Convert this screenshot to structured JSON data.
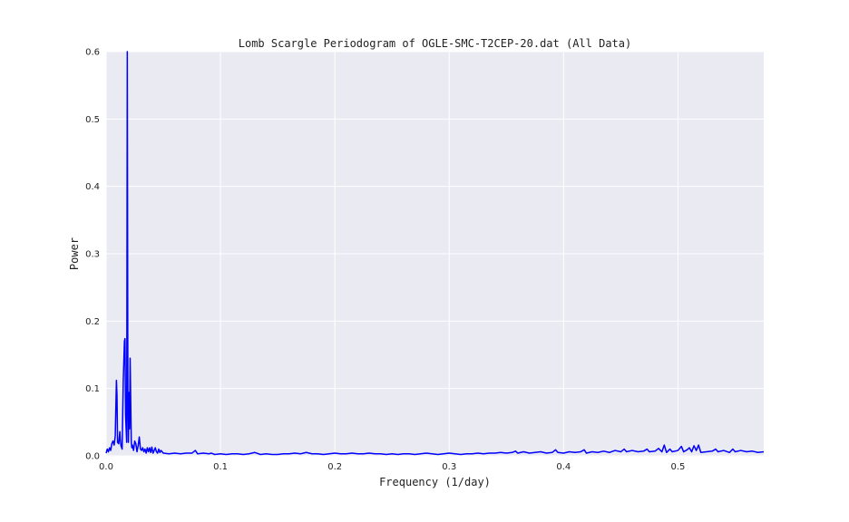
{
  "chart_data": {
    "type": "line",
    "title": "Lomb Scargle Periodogram of OGLE-SMC-T2CEP-20.dat (All Data)",
    "xlabel": "Frequency (1/day)",
    "ylabel": "Power",
    "xlim": [
      0.0,
      0.575
    ],
    "ylim": [
      0.0,
      0.6
    ],
    "xticks": [
      "0.0",
      "0.1",
      "0.2",
      "0.3",
      "0.4",
      "0.5"
    ],
    "yticks": [
      "0.0",
      "0.1",
      "0.2",
      "0.3",
      "0.4",
      "0.5",
      "0.6"
    ],
    "grid": true,
    "background": "#eaeaf2",
    "line_color": "#0000ff",
    "series": [
      {
        "x": [
          0.0,
          0.001,
          0.002,
          0.003,
          0.004,
          0.005,
          0.006,
          0.007,
          0.008,
          0.009,
          0.0095,
          0.01,
          0.011,
          0.012,
          0.0125,
          0.013,
          0.014,
          0.015,
          0.016,
          0.0165,
          0.017,
          0.018,
          0.0185,
          0.019,
          0.0195,
          0.02,
          0.0205,
          0.021,
          0.022,
          0.0225,
          0.023,
          0.024,
          0.025,
          0.026,
          0.027,
          0.028,
          0.029,
          0.03,
          0.031,
          0.032,
          0.033,
          0.034,
          0.035,
          0.036,
          0.037,
          0.038,
          0.039,
          0.04,
          0.041,
          0.042,
          0.043,
          0.044,
          0.045,
          0.046,
          0.047,
          0.048,
          0.05,
          0.055,
          0.06,
          0.065,
          0.07,
          0.075,
          0.078,
          0.08,
          0.085,
          0.09,
          0.092,
          0.095,
          0.1,
          0.105,
          0.11,
          0.115,
          0.12,
          0.125,
          0.13,
          0.135,
          0.14,
          0.145,
          0.15,
          0.155,
          0.16,
          0.165,
          0.17,
          0.175,
          0.18,
          0.185,
          0.19,
          0.195,
          0.2,
          0.205,
          0.21,
          0.215,
          0.22,
          0.225,
          0.23,
          0.235,
          0.24,
          0.245,
          0.25,
          0.255,
          0.26,
          0.265,
          0.27,
          0.275,
          0.28,
          0.285,
          0.29,
          0.295,
          0.3,
          0.305,
          0.31,
          0.315,
          0.32,
          0.325,
          0.33,
          0.335,
          0.34,
          0.345,
          0.35,
          0.355,
          0.358,
          0.36,
          0.365,
          0.37,
          0.375,
          0.38,
          0.385,
          0.39,
          0.393,
          0.395,
          0.4,
          0.405,
          0.41,
          0.415,
          0.418,
          0.42,
          0.425,
          0.43,
          0.435,
          0.44,
          0.445,
          0.45,
          0.453,
          0.455,
          0.46,
          0.465,
          0.47,
          0.473,
          0.475,
          0.48,
          0.483,
          0.486,
          0.488,
          0.49,
          0.493,
          0.495,
          0.5,
          0.503,
          0.505,
          0.508,
          0.51,
          0.512,
          0.514,
          0.516,
          0.518,
          0.52,
          0.525,
          0.53,
          0.533,
          0.535,
          0.54,
          0.545,
          0.548,
          0.55,
          0.555,
          0.56,
          0.565,
          0.57,
          0.575
        ],
        "y": [
          0.004,
          0.01,
          0.006,
          0.012,
          0.008,
          0.018,
          0.022,
          0.016,
          0.03,
          0.112,
          0.09,
          0.02,
          0.018,
          0.036,
          0.022,
          0.015,
          0.01,
          0.112,
          0.17,
          0.174,
          0.06,
          0.02,
          0.6,
          0.1,
          0.02,
          0.094,
          0.04,
          0.145,
          0.02,
          0.012,
          0.016,
          0.008,
          0.022,
          0.018,
          0.006,
          0.015,
          0.028,
          0.01,
          0.008,
          0.012,
          0.006,
          0.01,
          0.004,
          0.012,
          0.006,
          0.012,
          0.005,
          0.013,
          0.004,
          0.008,
          0.012,
          0.006,
          0.004,
          0.01,
          0.005,
          0.008,
          0.004,
          0.003,
          0.004,
          0.003,
          0.004,
          0.004,
          0.008,
          0.003,
          0.004,
          0.003,
          0.004,
          0.002,
          0.003,
          0.002,
          0.003,
          0.003,
          0.002,
          0.003,
          0.005,
          0.002,
          0.003,
          0.002,
          0.002,
          0.003,
          0.003,
          0.004,
          0.003,
          0.005,
          0.003,
          0.003,
          0.002,
          0.003,
          0.004,
          0.003,
          0.003,
          0.004,
          0.003,
          0.003,
          0.004,
          0.003,
          0.003,
          0.002,
          0.003,
          0.002,
          0.003,
          0.003,
          0.002,
          0.003,
          0.004,
          0.003,
          0.002,
          0.003,
          0.004,
          0.003,
          0.002,
          0.003,
          0.003,
          0.004,
          0.003,
          0.004,
          0.004,
          0.005,
          0.004,
          0.005,
          0.007,
          0.004,
          0.006,
          0.004,
          0.005,
          0.006,
          0.004,
          0.005,
          0.009,
          0.005,
          0.004,
          0.006,
          0.005,
          0.006,
          0.009,
          0.004,
          0.006,
          0.005,
          0.007,
          0.005,
          0.008,
          0.006,
          0.01,
          0.006,
          0.008,
          0.006,
          0.007,
          0.01,
          0.006,
          0.007,
          0.011,
          0.006,
          0.016,
          0.005,
          0.01,
          0.006,
          0.008,
          0.014,
          0.006,
          0.009,
          0.012,
          0.006,
          0.015,
          0.008,
          0.016,
          0.005,
          0.006,
          0.007,
          0.01,
          0.006,
          0.008,
          0.005,
          0.01,
          0.006,
          0.008,
          0.006,
          0.007,
          0.005,
          0.006
        ]
      }
    ]
  }
}
